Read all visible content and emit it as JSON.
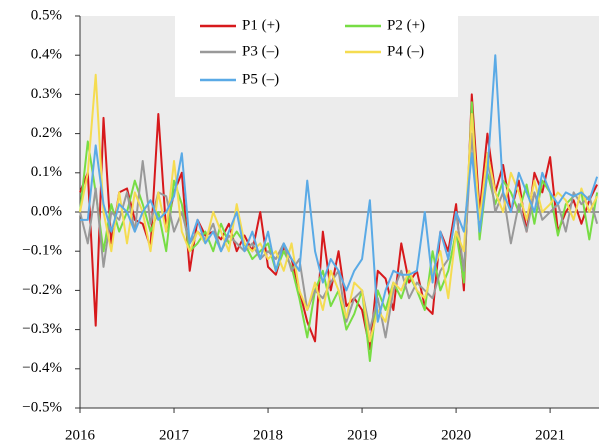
{
  "chart_data": {
    "type": "line",
    "x": [
      2016,
      2016.083,
      2016.167,
      2016.25,
      2016.333,
      2016.417,
      2016.5,
      2016.583,
      2016.667,
      2016.75,
      2016.833,
      2016.917,
      2017,
      2017.083,
      2017.167,
      2017.25,
      2017.333,
      2017.417,
      2017.5,
      2017.583,
      2017.667,
      2017.75,
      2017.833,
      2017.917,
      2018,
      2018.083,
      2018.167,
      2018.25,
      2018.333,
      2018.417,
      2018.5,
      2018.583,
      2018.667,
      2018.75,
      2018.833,
      2018.917,
      2019,
      2019.083,
      2019.167,
      2019.25,
      2019.333,
      2019.417,
      2019.5,
      2019.583,
      2019.667,
      2019.75,
      2019.833,
      2019.917,
      2020,
      2020.083,
      2020.167,
      2020.25,
      2020.333,
      2020.417,
      2020.5,
      2020.583,
      2020.667,
      2020.75,
      2020.833,
      2020.917,
      2021,
      2021.083,
      2021.167,
      2021.25,
      2021.333,
      2021.417,
      2021.5
    ],
    "series": [
      {
        "name": "P1 (+)",
        "color": "#d7191c",
        "values": [
          0.05,
          0.1,
          -0.29,
          0.24,
          -0.08,
          0.05,
          0.06,
          -0.02,
          -0.03,
          -0.09,
          0.25,
          -0.05,
          0.05,
          0.1,
          -0.15,
          -0.02,
          -0.06,
          -0.05,
          -0.07,
          -0.03,
          -0.1,
          -0.06,
          -0.1,
          0.0,
          -0.14,
          -0.16,
          -0.09,
          -0.12,
          -0.2,
          -0.28,
          -0.33,
          -0.05,
          -0.2,
          -0.1,
          -0.24,
          -0.22,
          -0.25,
          -0.35,
          -0.15,
          -0.17,
          -0.25,
          -0.08,
          -0.18,
          -0.15,
          -0.24,
          -0.26,
          -0.05,
          -0.1,
          0.02,
          -0.2,
          0.3,
          0.0,
          0.2,
          0.05,
          0.12,
          0.0,
          0.08,
          -0.05,
          0.1,
          0.05,
          0.14,
          -0.05,
          0.0,
          0.03,
          -0.03,
          0.03,
          0.07
        ]
      },
      {
        "name": "P2 (+)",
        "color": "#77dd44",
        "values": [
          0.0,
          0.18,
          0.05,
          -0.1,
          0.02,
          -0.05,
          0.0,
          0.08,
          0.02,
          -0.05,
          0.0,
          -0.1,
          0.08,
          0.02,
          -0.1,
          -0.08,
          -0.05,
          -0.1,
          -0.03,
          -0.08,
          -0.05,
          -0.08,
          -0.12,
          -0.1,
          -0.08,
          -0.15,
          -0.1,
          -0.14,
          -0.22,
          -0.32,
          -0.2,
          -0.15,
          -0.24,
          -0.2,
          -0.3,
          -0.26,
          -0.2,
          -0.38,
          -0.2,
          -0.25,
          -0.18,
          -0.22,
          -0.16,
          -0.2,
          -0.25,
          -0.1,
          -0.2,
          -0.15,
          -0.05,
          -0.18,
          0.28,
          -0.07,
          0.1,
          0.02,
          0.08,
          0.05,
          0.0,
          0.07,
          -0.03,
          0.08,
          0.05,
          -0.06,
          0.02,
          0.04,
          0.05,
          -0.07,
          0.05
        ]
      },
      {
        "name": "P3 (–)",
        "color": "#999999",
        "values": [
          0.0,
          -0.08,
          0.06,
          -0.14,
          0.0,
          -0.02,
          0.05,
          -0.05,
          0.13,
          -0.03,
          0.05,
          0.04,
          -0.05,
          0.0,
          -0.08,
          -0.05,
          -0.07,
          -0.03,
          -0.1,
          -0.06,
          -0.08,
          -0.1,
          -0.08,
          -0.12,
          -0.1,
          -0.12,
          -0.08,
          -0.15,
          -0.12,
          -0.25,
          -0.2,
          -0.22,
          -0.18,
          -0.15,
          -0.28,
          -0.22,
          -0.2,
          -0.3,
          -0.22,
          -0.32,
          -0.2,
          -0.15,
          -0.22,
          -0.18,
          -0.2,
          -0.22,
          -0.15,
          -0.12,
          0.0,
          -0.15,
          0.2,
          -0.05,
          0.15,
          0.0,
          0.05,
          -0.08,
          0.02,
          -0.05,
          0.05,
          -0.02,
          0.0,
          0.02,
          -0.05,
          0.05,
          0.02,
          0.04,
          -0.03
        ]
      },
      {
        "name": "P4 (–)",
        "color": "#f5dc50",
        "values": [
          0.0,
          0.1,
          0.35,
          0.0,
          -0.1,
          0.05,
          -0.08,
          0.05,
          0.0,
          -0.1,
          0.05,
          -0.05,
          0.13,
          -0.05,
          -0.1,
          -0.05,
          -0.08,
          0.0,
          -0.05,
          -0.1,
          0.02,
          -0.08,
          -0.1,
          -0.08,
          -0.12,
          -0.1,
          -0.15,
          -0.08,
          -0.2,
          -0.25,
          -0.18,
          -0.25,
          -0.15,
          -0.2,
          -0.27,
          -0.18,
          -0.2,
          -0.33,
          -0.25,
          -0.28,
          -0.18,
          -0.2,
          -0.15,
          -0.2,
          -0.22,
          -0.15,
          -0.1,
          -0.22,
          -0.05,
          -0.1,
          0.25,
          -0.02,
          0.15,
          0.05,
          0.0,
          0.1,
          0.05,
          -0.02,
          0.08,
          0.0,
          0.02,
          0.05,
          0.03,
          -0.02,
          0.06,
          0.0,
          0.04
        ]
      },
      {
        "name": "P5 (–)",
        "color": "#5aaae6",
        "values": [
          -0.02,
          -0.02,
          0.17,
          0.02,
          -0.05,
          0.02,
          0.0,
          -0.05,
          0.0,
          0.03,
          -0.02,
          0.0,
          0.04,
          0.15,
          -0.08,
          -0.02,
          -0.08,
          -0.05,
          -0.1,
          -0.05,
          0.0,
          -0.1,
          -0.05,
          -0.12,
          -0.05,
          -0.15,
          -0.08,
          -0.12,
          -0.15,
          0.08,
          -0.1,
          -0.18,
          -0.12,
          -0.15,
          -0.2,
          -0.15,
          -0.12,
          0.03,
          -0.28,
          -0.2,
          -0.15,
          -0.16,
          -0.16,
          -0.15,
          0.0,
          -0.18,
          -0.05,
          -0.12,
          0.0,
          -0.05,
          0.15,
          -0.05,
          0.1,
          0.4,
          0.05,
          0.0,
          0.1,
          0.05,
          0.0,
          0.1,
          0.05,
          0.02,
          0.05,
          0.04,
          0.05,
          0.03,
          0.09
        ]
      }
    ],
    "xlim": [
      2016,
      2021.52
    ],
    "xticks": [
      2016,
      2017,
      2018,
      2019,
      2020,
      2021
    ],
    "ylim": [
      -0.5,
      0.5
    ],
    "yticks": [
      {
        "value": -0.5,
        "label": "−0.5%"
      },
      {
        "value": -0.4,
        "label": "−0.4%"
      },
      {
        "value": -0.3,
        "label": "−0.3%"
      },
      {
        "value": -0.2,
        "label": "−0.2%"
      },
      {
        "value": -0.1,
        "label": "−0.1%"
      },
      {
        "value": 0.0,
        "label": "0.0%"
      },
      {
        "value": 0.1,
        "label": "0.1%"
      },
      {
        "value": 0.2,
        "label": "0.2%"
      },
      {
        "value": 0.3,
        "label": "0.3%"
      },
      {
        "value": 0.4,
        "label": "0.4%"
      },
      {
        "value": 0.5,
        "label": "0.5%"
      }
    ],
    "grid": false
  }
}
